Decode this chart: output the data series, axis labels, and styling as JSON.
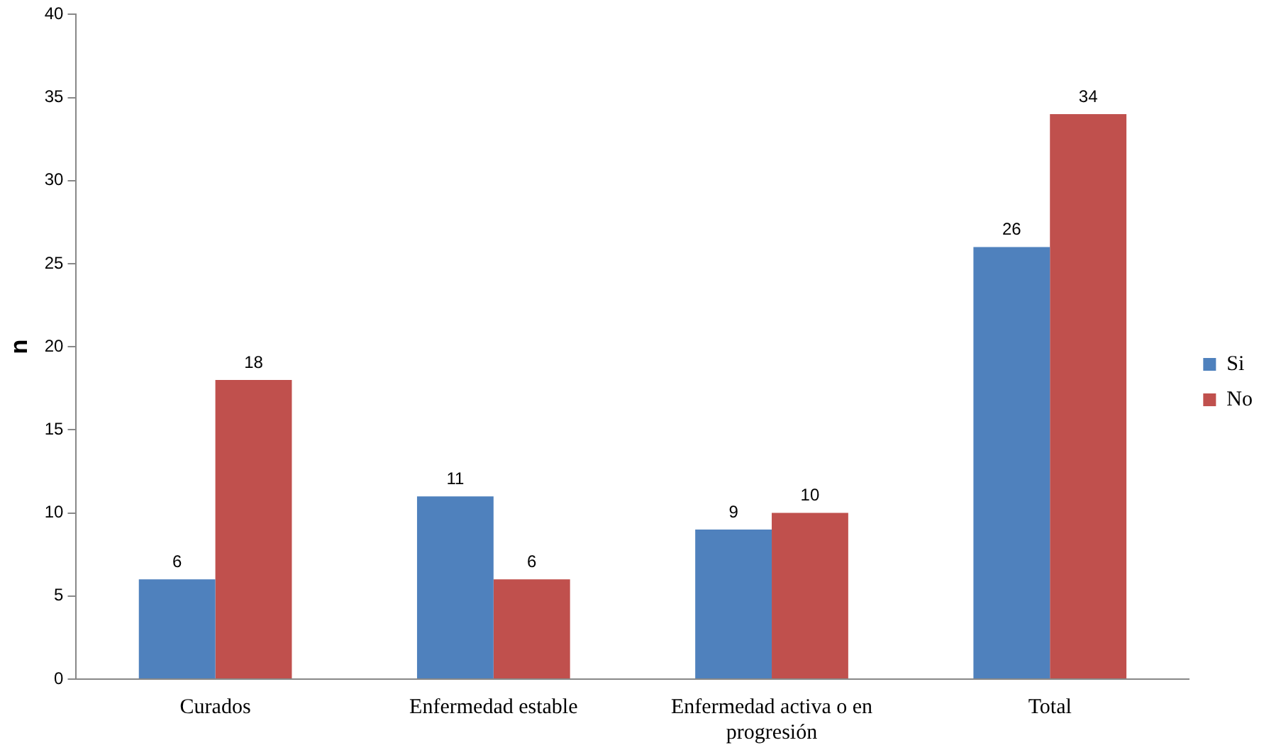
{
  "chart_data": {
    "type": "bar",
    "ylabel": "n",
    "categories": [
      "Curados",
      "Enfermedad estable",
      "Enfermedad activa o en progresión",
      "Total"
    ],
    "series": [
      {
        "name": "Si",
        "color": "#4f81bd",
        "values": [
          6,
          11,
          9,
          26
        ]
      },
      {
        "name": "No",
        "color": "#c0504d",
        "values": [
          18,
          6,
          10,
          34
        ]
      }
    ],
    "ylim": [
      0,
      40
    ],
    "yticks": [
      0,
      5,
      10,
      15,
      20,
      25,
      30,
      35,
      40
    ],
    "grid": false,
    "legend": "right",
    "data_labels": true
  }
}
